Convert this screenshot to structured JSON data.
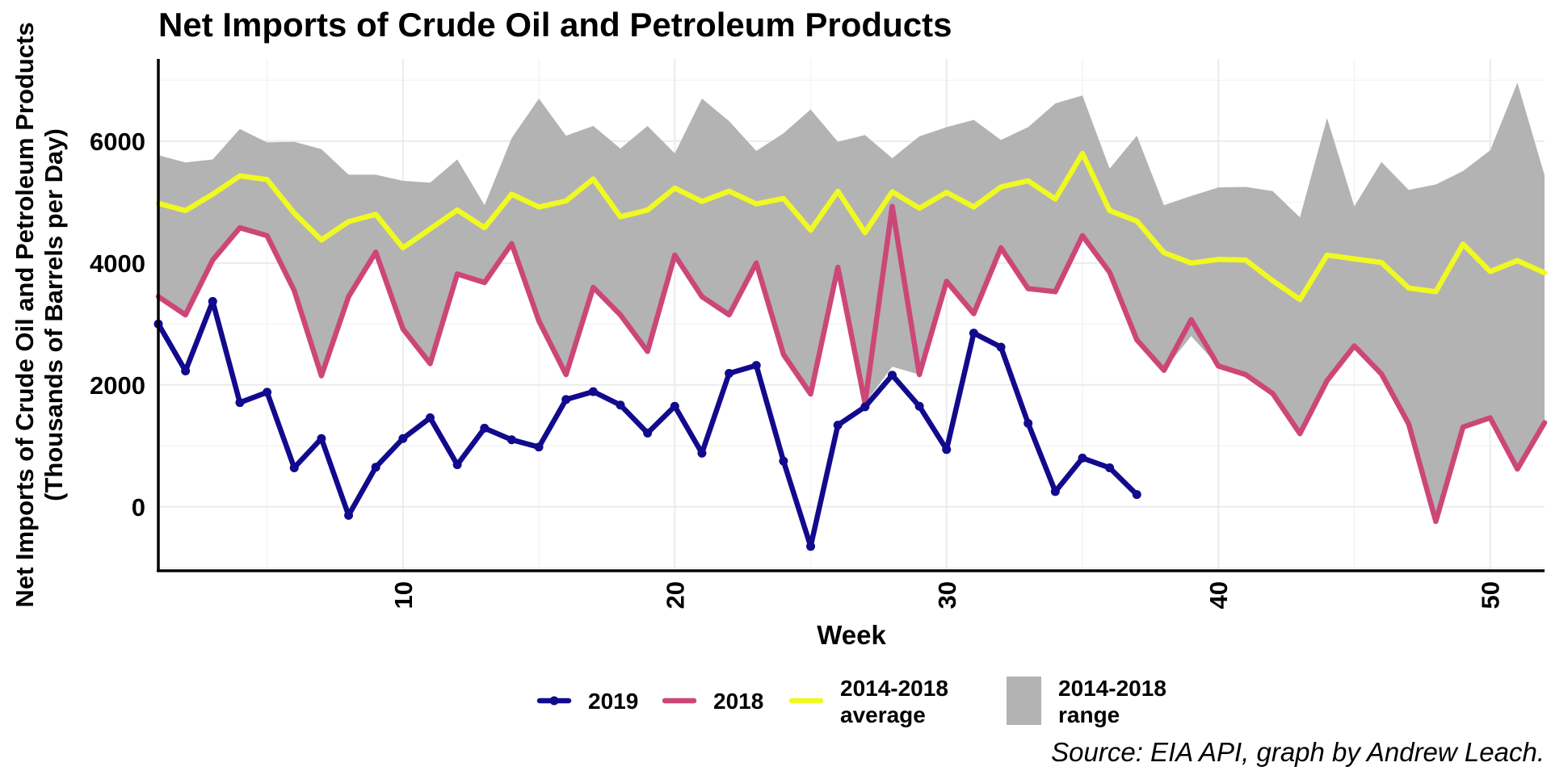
{
  "chart_data": {
    "type": "line",
    "title": "Net Imports of Crude Oil and Petroleum Products",
    "ylabel_line1": "Net Imports of Crude Oil and Petroleum Products",
    "ylabel_line2": "(Thousands of Barrels per Day)",
    "xlabel": "Week",
    "caption": "Source: EIA API, graph by Andrew Leach.",
    "xlim": [
      1,
      52
    ],
    "ylim": [
      -1050,
      7350
    ],
    "x_ticks": [
      10,
      20,
      30,
      40,
      50
    ],
    "x_tick_labels": [
      "10",
      "20",
      "30",
      "40",
      "50"
    ],
    "y_ticks": [
      0,
      2000,
      4000,
      6000
    ],
    "y_tick_labels": [
      "0",
      "2000",
      "4000",
      "6000"
    ],
    "grid": true,
    "legend_position": "bottom",
    "legend": [
      {
        "key": "y2019",
        "label_lines": [
          "2019"
        ],
        "type": "line-point",
        "color": "#120a8c"
      },
      {
        "key": "y2018",
        "label_lines": [
          "2018"
        ],
        "type": "line",
        "color": "#cc4778"
      },
      {
        "key": "avg",
        "label_lines": [
          "2014-2018",
          "average"
        ],
        "type": "line",
        "color": "#f0f921"
      },
      {
        "key": "range",
        "label_lines": [
          "2014-2018",
          "range"
        ],
        "type": "fill",
        "color": "#b3b3b3"
      }
    ],
    "range_band": {
      "name": "2014-2018 range",
      "color": "#b3b3b3",
      "x": [
        1,
        2,
        3,
        4,
        5,
        6,
        7,
        8,
        9,
        10,
        11,
        12,
        13,
        14,
        15,
        16,
        17,
        18,
        19,
        20,
        21,
        22,
        23,
        24,
        25,
        26,
        27,
        28,
        29,
        30,
        31,
        32,
        33,
        34,
        35,
        36,
        37,
        38,
        39,
        40,
        41,
        42,
        43,
        44,
        45,
        46,
        47,
        48,
        49,
        50,
        51,
        52
      ],
      "upper": [
        5770,
        5650,
        5700,
        6200,
        5980,
        5990,
        5870,
        5450,
        5450,
        5350,
        5320,
        5700,
        4950,
        6050,
        6700,
        6090,
        6250,
        5880,
        6250,
        5800,
        6700,
        6330,
        5840,
        6130,
        6520,
        5990,
        6100,
        5720,
        6080,
        6230,
        6350,
        6020,
        6230,
        6620,
        6750,
        5550,
        6090,
        4950,
        5100,
        5240,
        5250,
        5180,
        4750,
        6380,
        4930,
        5660,
        5200,
        5290,
        5510,
        5850,
        6960,
        5440
      ],
      "lower": [
        3450,
        3150,
        4050,
        4580,
        4450,
        3550,
        2150,
        3450,
        4180,
        2920,
        2350,
        3820,
        3680,
        4320,
        3050,
        2170,
        3600,
        3150,
        2550,
        4130,
        3450,
        3150,
        4000,
        2500,
        1850,
        3930,
        1700,
        2300,
        2170,
        3700,
        3170,
        4250,
        3580,
        3530,
        4450,
        3850,
        2740,
        2240,
        2800,
        2310,
        2170,
        1860,
        1200,
        2070,
        2640,
        2180,
        1360,
        -240,
        1310,
        1460,
        620,
        1380
      ]
    },
    "series": [
      {
        "name": "2019",
        "key": "y2019",
        "color": "#120a8c",
        "points": true,
        "x": [
          1,
          2,
          3,
          4,
          5,
          6,
          7,
          8,
          9,
          10,
          11,
          12,
          13,
          14,
          15,
          16,
          17,
          18,
          19,
          20,
          21,
          22,
          23,
          24,
          25,
          26,
          27,
          28,
          29,
          30,
          31,
          32,
          33,
          34,
          35,
          36,
          37
        ],
        "values": [
          3000,
          2230,
          3370,
          1710,
          1880,
          640,
          1120,
          -140,
          650,
          1120,
          1460,
          690,
          1290,
          1100,
          980,
          1760,
          1890,
          1670,
          1210,
          1650,
          880,
          2190,
          2320,
          750,
          -650,
          1340,
          1640,
          2160,
          1650,
          940,
          2850,
          2620,
          1370,
          250,
          800,
          640,
          200
        ]
      },
      {
        "name": "2018",
        "key": "y2018",
        "color": "#cc4778",
        "points": false,
        "x": [
          1,
          2,
          3,
          4,
          5,
          6,
          7,
          8,
          9,
          10,
          11,
          12,
          13,
          14,
          15,
          16,
          17,
          18,
          19,
          20,
          21,
          22,
          23,
          24,
          25,
          26,
          27,
          28,
          29,
          30,
          31,
          32,
          33,
          34,
          35,
          36,
          37,
          38,
          39,
          40,
          41,
          42,
          43,
          44,
          45,
          46,
          47,
          48,
          49,
          50,
          51,
          52
        ],
        "values": [
          3450,
          3150,
          4050,
          4580,
          4450,
          3550,
          2150,
          3450,
          4180,
          2920,
          2350,
          3820,
          3680,
          4320,
          3050,
          2170,
          3600,
          3150,
          2550,
          4130,
          3450,
          3150,
          4000,
          2500,
          1850,
          3930,
          1700,
          4930,
          2170,
          3700,
          3170,
          4250,
          3580,
          3530,
          4450,
          3850,
          2740,
          2240,
          3070,
          2310,
          2170,
          1860,
          1200,
          2070,
          2640,
          2180,
          1360,
          -240,
          1310,
          1460,
          620,
          1380
        ]
      },
      {
        "name": "2014-2018 average",
        "key": "avg",
        "color": "#f0f921",
        "points": false,
        "x": [
          1,
          2,
          3,
          4,
          5,
          6,
          7,
          8,
          9,
          10,
          11,
          12,
          13,
          14,
          15,
          16,
          17,
          18,
          19,
          20,
          21,
          22,
          23,
          24,
          25,
          26,
          27,
          28,
          29,
          30,
          31,
          32,
          33,
          34,
          35,
          36,
          37,
          38,
          39,
          40,
          41,
          42,
          43,
          44,
          45,
          46,
          47,
          48,
          49,
          50,
          51,
          52
        ],
        "values": [
          4980,
          4860,
          5130,
          5430,
          5370,
          4820,
          4380,
          4680,
          4800,
          4250,
          4560,
          4870,
          4580,
          5130,
          4920,
          5020,
          5380,
          4760,
          4870,
          5230,
          5010,
          5180,
          4970,
          5060,
          4540,
          5180,
          4500,
          5170,
          4900,
          5160,
          4920,
          5250,
          5350,
          5050,
          5800,
          4860,
          4690,
          4170,
          4000,
          4060,
          4050,
          3710,
          3400,
          4130,
          4070,
          4010,
          3590,
          3530,
          4310,
          3860,
          4040,
          3840
        ]
      }
    ]
  }
}
